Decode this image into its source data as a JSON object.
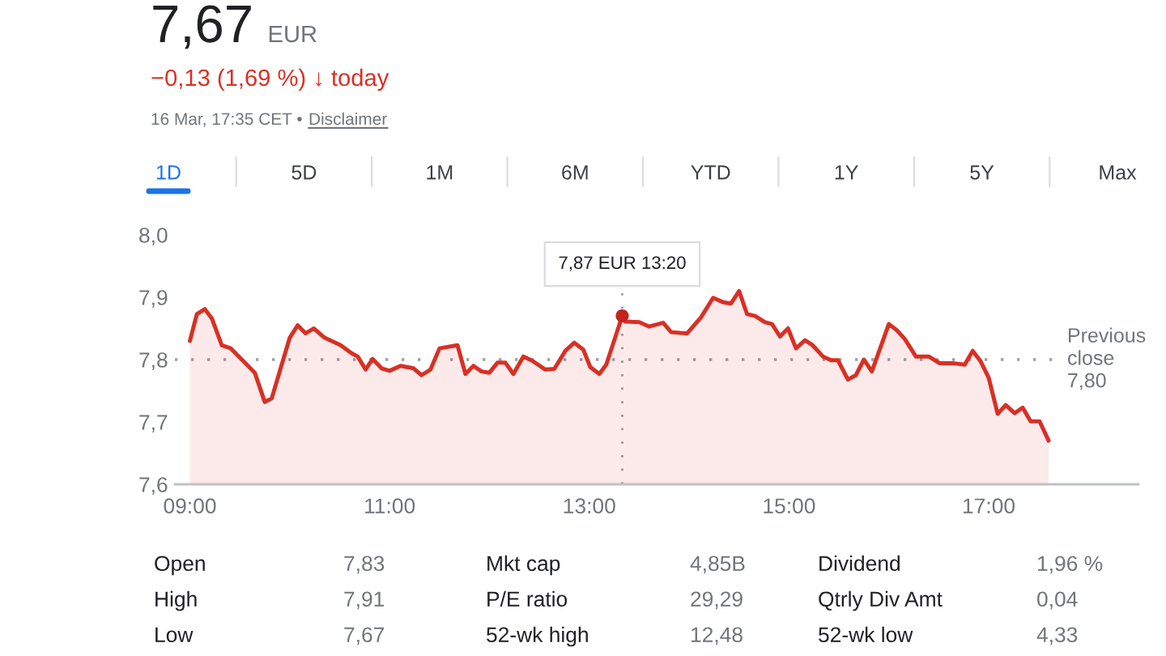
{
  "chart_data": [
    {
      "type": "area",
      "title": "7,67",
      "subtitle": "−0,13 (1,69 %) ↓ today",
      "annotations": [
        "EUR",
        "16 Mar, 17:35 CET •",
        "Disclaimer",
        "1D",
        "5D",
        "1M",
        "6M",
        "YTD",
        "1Y",
        "5Y",
        "Max",
        {
          "text": "7,87 EUR 13:20",
          "x": 13.33,
          "y": 7.87
        }
      ],
      "x": [
        9.0,
        9.07,
        9.15,
        9.22,
        9.32,
        9.41,
        9.49,
        9.65,
        9.75,
        9.82,
        10.0,
        10.08,
        10.16,
        10.24,
        10.35,
        10.51,
        10.62,
        10.68,
        10.76,
        10.83,
        10.92,
        11.0,
        11.11,
        11.24,
        11.32,
        11.41,
        11.5,
        11.68,
        11.76,
        11.84,
        11.92,
        12.0,
        12.08,
        12.16,
        12.24,
        12.34,
        12.43,
        12.56,
        12.65,
        12.76,
        12.85,
        12.94,
        13.01,
        13.1,
        13.17,
        13.33,
        13.36,
        13.5,
        13.6,
        13.74,
        13.82,
        13.98,
        14.12,
        14.24,
        14.34,
        14.42,
        14.5,
        14.58,
        14.66,
        14.76,
        14.83,
        14.91,
        14.99,
        15.07,
        15.16,
        15.23,
        15.34,
        15.42,
        15.49,
        15.59,
        15.67,
        15.75,
        15.83,
        16.0,
        16.08,
        16.16,
        16.27,
        16.4,
        16.51,
        16.65,
        16.76,
        16.84,
        16.92,
        17.0,
        17.09,
        17.17,
        17.26,
        17.34,
        17.42,
        17.51,
        17.6
      ],
      "series": [
        {
          "color": "#d93025",
          "values": [
            7.83,
            7.873,
            7.881,
            7.866,
            7.823,
            7.818,
            7.805,
            7.779,
            7.732,
            7.738,
            7.835,
            7.855,
            7.842,
            7.85,
            7.835,
            7.823,
            7.81,
            7.805,
            7.784,
            7.801,
            7.786,
            7.782,
            7.79,
            7.786,
            7.775,
            7.784,
            7.818,
            7.823,
            7.777,
            7.79,
            7.781,
            7.779,
            7.795,
            7.795,
            7.777,
            7.805,
            7.798,
            7.784,
            7.785,
            7.814,
            7.827,
            7.816,
            7.788,
            7.777,
            7.792,
            7.87,
            7.861,
            7.86,
            7.853,
            7.859,
            7.844,
            7.842,
            7.868,
            7.899,
            7.892,
            7.89,
            7.91,
            7.873,
            7.87,
            7.86,
            7.857,
            7.837,
            7.85,
            7.818,
            7.831,
            7.824,
            7.805,
            7.799,
            7.799,
            7.768,
            7.775,
            7.8,
            7.781,
            7.857,
            7.847,
            7.833,
            7.805,
            7.805,
            7.794,
            7.794,
            7.792,
            7.814,
            7.797,
            7.771,
            7.713,
            7.727,
            7.714,
            7.723,
            7.701,
            7.701,
            7.67
          ]
        },
        {
          "type": "scatter",
          "marker": "circle",
          "color": "#c5221f",
          "x": [
            13.33
          ],
          "values": [
            7.87
          ]
        }
      ],
      "xlim": [
        8.85,
        18.5
      ],
      "xticks": [
        {
          "value": 9,
          "label": "09:00"
        },
        {
          "value": 11,
          "label": "11:00"
        },
        {
          "value": 13,
          "label": "13:00"
        },
        {
          "value": 15,
          "label": "15:00"
        },
        {
          "value": 17,
          "label": "17:00"
        }
      ],
      "ylim": [
        7.6,
        8.0
      ],
      "yticks": [
        {
          "value": 7.6,
          "label": "7,6"
        },
        {
          "value": 7.7,
          "label": "7,7"
        },
        {
          "value": 7.8,
          "label": "7,8"
        },
        {
          "value": 7.9,
          "label": "7,9"
        },
        {
          "value": 8.0,
          "label": "8,0"
        }
      ],
      "ref_lines": [
        {
          "axis": "y",
          "value": 7.8,
          "label": "Previous close 7,80",
          "color": "#9aa0a6",
          "line_style": "dotted"
        },
        {
          "axis": "x",
          "value": 13.33,
          "color": "#9aa0a6",
          "line_style": "dotted"
        }
      ],
      "grid": false
    },
    {
      "type": "other",
      "annotations": [
        "Open",
        "7,83",
        "Mkt cap",
        "4,85B",
        "Dividend",
        "1,96 %",
        "High",
        "7,91",
        "P/E ratio",
        "29,29",
        "Qtrly Div Amt",
        "0,04",
        "Low",
        "7,67",
        "52-wk high",
        "12,48",
        "52-wk low",
        "4,33"
      ]
    }
  ]
}
